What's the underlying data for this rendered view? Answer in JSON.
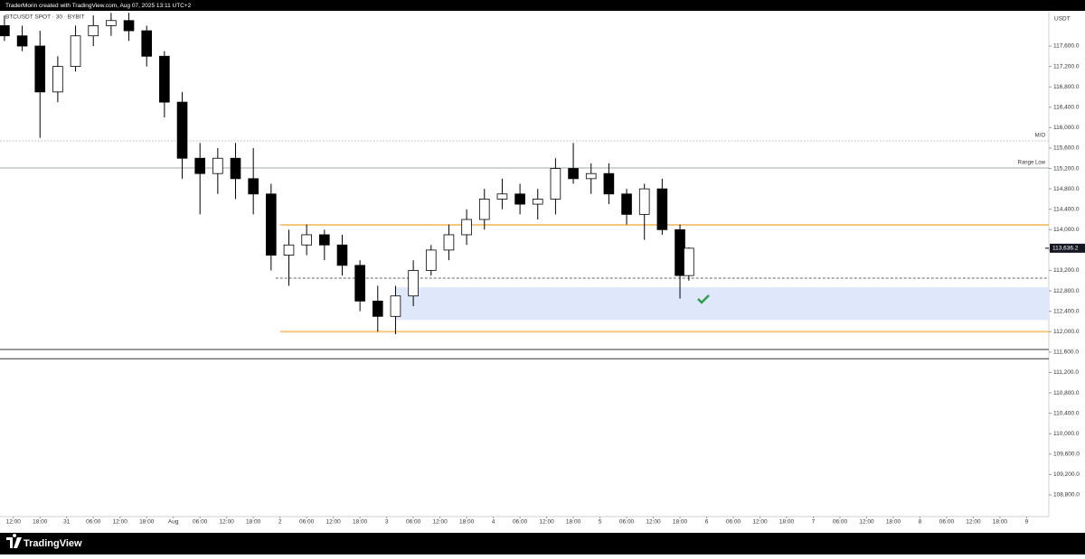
{
  "header": {
    "text": "TraderMorin created with TradingView.com, Aug 07, 2025 13:11 UTC+2"
  },
  "footer": {
    "brand": "TradingView"
  },
  "chart_data": {
    "type": "candlestick",
    "title": "BTCUSDT SPOT · 30 · BYBIT",
    "currency": "USDT",
    "xlim": [
      -3,
      233
    ],
    "ylim": [
      108375,
      118255
    ],
    "xticks": [
      {
        "value": 0,
        "label": "12:00"
      },
      {
        "value": 6,
        "label": "18:00"
      },
      {
        "value": 12,
        "label": "31"
      },
      {
        "value": 18,
        "label": "06:00"
      },
      {
        "value": 24,
        "label": "12:00"
      },
      {
        "value": 30,
        "label": "18:00"
      },
      {
        "value": 36,
        "label": "Aug"
      },
      {
        "value": 42,
        "label": "06:00"
      },
      {
        "value": 48,
        "label": "12:00"
      },
      {
        "value": 54,
        "label": "18:00"
      },
      {
        "value": 60,
        "label": "2"
      },
      {
        "value": 66,
        "label": "06:00"
      },
      {
        "value": 72,
        "label": "12:00"
      },
      {
        "value": 78,
        "label": "18:00"
      },
      {
        "value": 84,
        "label": "3"
      },
      {
        "value": 90,
        "label": "06:00"
      },
      {
        "value": 96,
        "label": "12:00"
      },
      {
        "value": 102,
        "label": "18:00"
      },
      {
        "value": 108,
        "label": "4"
      },
      {
        "value": 114,
        "label": "06:00"
      },
      {
        "value": 120,
        "label": "12:00"
      },
      {
        "value": 126,
        "label": "18:00"
      },
      {
        "value": 132,
        "label": "5"
      },
      {
        "value": 138,
        "label": "06:00"
      },
      {
        "value": 144,
        "label": "12:00"
      },
      {
        "value": 150,
        "label": "18:00"
      },
      {
        "value": 156,
        "label": "6"
      },
      {
        "value": 162,
        "label": "06:00"
      },
      {
        "value": 168,
        "label": "12:00"
      },
      {
        "value": 174,
        "label": "18:00"
      },
      {
        "value": 180,
        "label": "7"
      },
      {
        "value": 186,
        "label": "06:00"
      },
      {
        "value": 192,
        "label": "12:00"
      },
      {
        "value": 198,
        "label": "18:00"
      },
      {
        "value": 204,
        "label": "8"
      },
      {
        "value": 210,
        "label": "06:00"
      },
      {
        "value": 216,
        "label": "12:00"
      },
      {
        "value": 222,
        "label": "18:00"
      },
      {
        "value": 228,
        "label": "9"
      }
    ],
    "yticks": [
      {
        "value": 108800,
        "label": "108,800.0"
      },
      {
        "value": 109200,
        "label": "109,200.0"
      },
      {
        "value": 109600,
        "label": "109,600.0"
      },
      {
        "value": 110000,
        "label": "110,000.0"
      },
      {
        "value": 110400,
        "label": "110,400.0"
      },
      {
        "value": 110800,
        "label": "110,800.0"
      },
      {
        "value": 111200,
        "label": "111,200.0"
      },
      {
        "value": 111600,
        "label": "111,600.0"
      },
      {
        "value": 112000,
        "label": "112,000.0"
      },
      {
        "value": 112400,
        "label": "112,400.0"
      },
      {
        "value": 112800,
        "label": "112,800.0"
      },
      {
        "value": 113200,
        "label": "113,200.0"
      },
      {
        "value": 113600,
        "label": "113,600.0"
      },
      {
        "value": 114000,
        "label": "114,000.0"
      },
      {
        "value": 114400,
        "label": "114,400.0"
      },
      {
        "value": 114800,
        "label": "114,800.0"
      },
      {
        "value": 115200,
        "label": "115,200.0"
      },
      {
        "value": 115600,
        "label": "115,600.0"
      },
      {
        "value": 116000,
        "label": "116,000.0"
      },
      {
        "value": 116400,
        "label": "116,400.0"
      },
      {
        "value": 116800,
        "label": "116,800.0"
      },
      {
        "value": 117200,
        "label": "117,200.0"
      },
      {
        "value": 117600,
        "label": "117,600.0"
      }
    ],
    "x": [
      -2,
      2,
      6,
      10,
      14,
      18,
      22,
      26,
      30,
      34,
      38,
      42,
      46,
      50,
      54,
      58,
      62,
      66,
      70,
      74,
      78,
      82,
      86,
      90,
      94,
      98,
      102,
      106,
      110,
      114,
      118,
      122,
      126,
      130,
      134,
      138,
      142,
      146,
      150,
      152
    ],
    "open": [
      118000,
      117800,
      117600,
      116700,
      117200,
      117800,
      118000,
      118100,
      117900,
      117400,
      116500,
      115400,
      115100,
      115400,
      115000,
      114700,
      113500,
      113700,
      113900,
      113700,
      113300,
      112600,
      112300,
      112700,
      113200,
      113600,
      113900,
      114200,
      114600,
      114700,
      114500,
      114600,
      115200,
      115000,
      115100,
      114700,
      114300,
      114800,
      114000,
      113100
    ],
    "high": [
      118200,
      118000,
      117900,
      117400,
      118000,
      118200,
      118250,
      118250,
      118000,
      117500,
      116700,
      115700,
      115600,
      115700,
      115600,
      114900,
      114000,
      114100,
      114000,
      113900,
      113400,
      112900,
      112900,
      113400,
      113700,
      114100,
      114400,
      114800,
      115000,
      114900,
      114800,
      115400,
      115700,
      115300,
      115300,
      114800,
      114900,
      115000,
      114100,
      113650
    ],
    "low": [
      117700,
      117500,
      115800,
      116500,
      117100,
      117600,
      117800,
      117700,
      117200,
      116200,
      115000,
      114300,
      114700,
      114600,
      114300,
      113200,
      112900,
      113500,
      113400,
      113100,
      112400,
      112000,
      111950,
      112500,
      113100,
      113400,
      113700,
      114000,
      114400,
      114300,
      114200,
      114300,
      114900,
      114700,
      114500,
      114100,
      113800,
      113900,
      112650,
      113000
    ],
    "close": [
      117800,
      117600,
      116700,
      117200,
      117800,
      118000,
      118100,
      117900,
      117400,
      116500,
      115400,
      115100,
      115400,
      115000,
      114700,
      113500,
      113700,
      113900,
      113700,
      113300,
      112600,
      112300,
      112700,
      113200,
      113600,
      113900,
      114200,
      114600,
      114700,
      114500,
      114600,
      115200,
      115000,
      115100,
      114700,
      114300,
      114800,
      114000,
      113100,
      113636.2
    ],
    "up_color": "#ffffff",
    "down_color": "#000000",
    "last_price": {
      "value": 113636.2,
      "label": "113,636.2"
    },
    "levels": [
      {
        "value": 115740,
        "label": "M/O",
        "color": "#b8b8b8",
        "style": "dotted"
      },
      {
        "value": 115210,
        "label": "Range Low",
        "color": "#9aa8ab",
        "style": "solid"
      },
      {
        "value": 114093,
        "color": "#f8c77e",
        "style": "solid",
        "start": 60
      },
      {
        "value": 112000,
        "color": "#f8c77e",
        "style": "solid",
        "start": 60
      },
      {
        "value": 113050,
        "color": "#666666",
        "style": "dashed",
        "start": 59
      },
      {
        "value": 111650,
        "color": "#333333",
        "style": "solid"
      },
      {
        "value": 111470,
        "color": "#333333",
        "style": "solid"
      }
    ],
    "zone": {
      "from": 112230,
      "to": 112870,
      "start": 86,
      "color": "#dfe7fb"
    }
  }
}
